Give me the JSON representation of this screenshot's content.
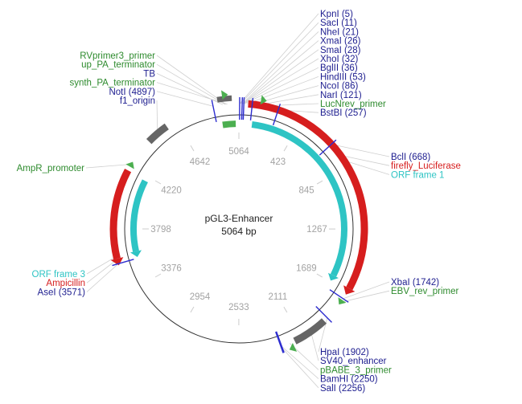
{
  "plasmid": {
    "name": "pGL3-Enhancer",
    "length_label": "5064 bp",
    "length": 5064
  },
  "colors": {
    "site": "#1d1d8f",
    "feature_green": "#2e8b2e",
    "feature_red": "#d61e1e",
    "orf_cyan": "#2ec4c4",
    "backbone": "#333333",
    "tick_text": "#a3a3a3",
    "gray_feature": "#666666",
    "marker_green": "#4caf50",
    "marker_blue": "#2c2ccf"
  },
  "ticks": [
    {
      "label": "5064",
      "pos": 0
    },
    {
      "label": "423",
      "pos": 423
    },
    {
      "label": "845",
      "pos": 845
    },
    {
      "label": "1267",
      "pos": 1267
    },
    {
      "label": "1689",
      "pos": 1689
    },
    {
      "label": "2111",
      "pos": 2111
    },
    {
      "label": "2533",
      "pos": 2533
    },
    {
      "label": "2954",
      "pos": 2954
    },
    {
      "label": "3376",
      "pos": 3376
    },
    {
      "label": "3798",
      "pos": 3798
    },
    {
      "label": "4220",
      "pos": 4220
    },
    {
      "label": "4642",
      "pos": 4642
    }
  ],
  "arcs": [
    {
      "name": "firefly_Luciferase",
      "start": 60,
      "end": 1710,
      "ring": "outer",
      "color": "red",
      "direction": "cw"
    },
    {
      "name": "ORF frame 1",
      "start": 100,
      "end": 1680,
      "ring": "inner",
      "color": "cyan",
      "direction": "cw"
    },
    {
      "name": "Ampicillin",
      "start": 3560,
      "end": 4190,
      "ring": "outer",
      "color": "red",
      "direction": "ccw"
    },
    {
      "name": "ORF frame 3",
      "start": 3580,
      "end": 4180,
      "ring": "inner",
      "color": "cyan",
      "direction": "ccw"
    },
    {
      "name": "SV40_enhancer",
      "start": 1930,
      "end": 2160,
      "ring": "outer",
      "color": "gray",
      "direction": "none"
    },
    {
      "name": "f1_origin",
      "start": 4420,
      "end": 4570,
      "ring": "outer",
      "color": "gray",
      "direction": "none"
    },
    {
      "name": "up_PA_terminator",
      "start": 4930,
      "end": 5020,
      "ring": "outer2",
      "color": "gray",
      "direction": "none"
    },
    {
      "name": "synth_PA_terminator",
      "start": 4940,
      "end": 5040,
      "ring": "inner",
      "color": "green",
      "direction": "none"
    }
  ],
  "markers": [
    {
      "name": "LucNrev_primer",
      "pos": 155,
      "ring": "outer2",
      "color": "green"
    },
    {
      "name": "RVprimer3_primer",
      "pos": 4980,
      "ring": "outer3",
      "color": "green"
    },
    {
      "name": "EBV_rev_primer",
      "pos": 1770,
      "ring": "outer",
      "color": "green"
    },
    {
      "name": "pBABE_3_primer",
      "pos": 2195,
      "ring": "outer2",
      "color": "green"
    },
    {
      "name": "AmpR_promoter",
      "pos": 4235,
      "ring": "outer",
      "color": "green"
    }
  ],
  "sites": [
    {
      "name": "KpnI",
      "pos": 5
    },
    {
      "name": "NheI",
      "pos": 21
    },
    {
      "name": "XhoI",
      "pos": 32
    },
    {
      "name": "NcoI",
      "pos": 86
    },
    {
      "name": "BstBI",
      "pos": 257
    },
    {
      "name": "BclI",
      "pos": 668
    },
    {
      "name": "XbaI",
      "pos": 1742
    },
    {
      "name": "HpaI",
      "pos": 1902
    },
    {
      "name": "BamHI",
      "pos": 2250
    },
    {
      "name": "SalI",
      "pos": 2256
    },
    {
      "name": "AseI",
      "pos": 3571
    },
    {
      "name": "NotI",
      "pos": 4897
    }
  ],
  "labels": [
    {
      "text": "KpnI (5)",
      "color": "site",
      "side": "right",
      "pos": 5
    },
    {
      "text": "SacI (11)",
      "color": "site",
      "side": "right",
      "pos": 11
    },
    {
      "text": "NheI (21)",
      "color": "site",
      "side": "right",
      "pos": 21
    },
    {
      "text": "XmaI (26)",
      "color": "site",
      "side": "right",
      "pos": 26
    },
    {
      "text": "SmaI (28)",
      "color": "site",
      "side": "right",
      "pos": 28
    },
    {
      "text": "XhoI (32)",
      "color": "site",
      "side": "right",
      "pos": 32
    },
    {
      "text": "BglII (36)",
      "color": "site",
      "side": "right",
      "pos": 36
    },
    {
      "text": "HindIII (53)",
      "color": "site",
      "side": "right",
      "pos": 53
    },
    {
      "text": "NcoI (86)",
      "color": "site",
      "side": "right",
      "pos": 86
    },
    {
      "text": "NarI (121)",
      "color": "site",
      "side": "right",
      "pos": 121
    },
    {
      "text": "LucNrev_primer",
      "color": "feature_green",
      "side": "right",
      "pos": 155
    },
    {
      "text": "BstBI (257)",
      "color": "site",
      "side": "right",
      "pos": 257
    },
    {
      "text": "BclI (668)",
      "color": "site",
      "side": "right",
      "pos": 668
    },
    {
      "text": "firefly_Luciferase",
      "color": "feature_red",
      "side": "right",
      "pos": 760
    },
    {
      "text": "ORF frame 1",
      "color": "orf_cyan",
      "side": "right",
      "pos": 800
    },
    {
      "text": "XbaI (1742)",
      "color": "site",
      "side": "right",
      "pos": 1742
    },
    {
      "text": "EBV_rev_primer",
      "color": "feature_green",
      "side": "right",
      "pos": 1770
    },
    {
      "text": "HpaI (1902)",
      "color": "site",
      "side": "right",
      "pos": 1902
    },
    {
      "text": "SV40_enhancer",
      "color": "site",
      "side": "right",
      "pos": 2040
    },
    {
      "text": "pBABE_3_primer",
      "color": "feature_green",
      "side": "right",
      "pos": 2195
    },
    {
      "text": "BamHI (2250)",
      "color": "site",
      "side": "right",
      "pos": 2250
    },
    {
      "text": "SalI (2256)",
      "color": "site",
      "side": "right",
      "pos": 2256
    },
    {
      "text": "RVprimer3_primer",
      "color": "feature_green",
      "side": "left",
      "pos": 4980
    },
    {
      "text": "up_PA_terminator",
      "color": "feature_green",
      "side": "left",
      "pos": 4975
    },
    {
      "text": "TB",
      "color": "site",
      "side": "left",
      "pos": 4960
    },
    {
      "text": "synth_PA_terminator",
      "color": "feature_green",
      "side": "left",
      "pos": 4990
    },
    {
      "text": "NotI (4897)",
      "color": "site",
      "side": "left",
      "pos": 4897
    },
    {
      "text": "f1_origin",
      "color": "site",
      "side": "left",
      "pos": 4495
    },
    {
      "text": "AmpR_promoter",
      "color": "feature_green",
      "side": "left",
      "pos": 4235
    },
    {
      "text": "ORF frame 3",
      "color": "orf_cyan",
      "side": "left",
      "pos": 3620
    },
    {
      "text": "Ampicillin",
      "color": "feature_red",
      "side": "left",
      "pos": 3600
    },
    {
      "text": "AseI (3571)",
      "color": "site",
      "side": "left",
      "pos": 3571
    }
  ]
}
